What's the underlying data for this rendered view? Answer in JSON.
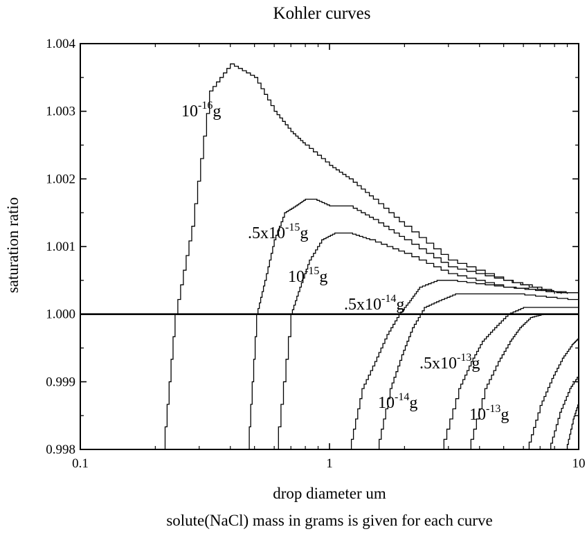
{
  "chart_data": {
    "type": "line",
    "title": "Kohler curves",
    "xlabel": "drop diameter um",
    "ylabel": "saturation ratio",
    "caption": "solute(NaCl) mass in grams is given for each curve",
    "x_scale": "log",
    "xlim": [
      0.1,
      10
    ],
    "ylim": [
      0.998,
      1.004
    ],
    "x_ticks": [
      {
        "value": 0.1,
        "label": "0.1"
      },
      {
        "value": 1,
        "label": "1"
      },
      {
        "value": 10,
        "label": "10"
      }
    ],
    "y_ticks": [
      {
        "value": 0.998,
        "label": "0.998"
      },
      {
        "value": 0.999,
        "label": "0.999"
      },
      {
        "value": 1.0,
        "label": "1.000"
      },
      {
        "value": 1.001,
        "label": "1.001"
      },
      {
        "value": 1.002,
        "label": "1.002"
      },
      {
        "value": 1.003,
        "label": "1.003"
      },
      {
        "value": 1.004,
        "label": "1.004"
      }
    ],
    "reference_line": {
      "y": 1.0
    },
    "grid": false,
    "series": [
      {
        "name": "10^-16 g",
        "label_base": "10",
        "label_exp": "-16",
        "label_unit": "g",
        "x": [
          0.215,
          0.24,
          0.28,
          0.33,
          0.4,
          0.5,
          0.6,
          0.7,
          0.8,
          1.0,
          1.2,
          1.5,
          2.0,
          3.0,
          5.0,
          8.5
        ],
        "y": [
          0.998,
          1.0,
          1.0013,
          1.0033,
          1.0037,
          1.0035,
          1.003,
          1.0027,
          1.0025,
          1.0022,
          1.002,
          1.0017,
          1.0013,
          1.0008,
          1.0005,
          1.0003
        ]
      },
      {
        "name": ".5x10^-15 g",
        "label_base": ".5x10",
        "label_exp": "-15",
        "label_unit": "g",
        "x": [
          0.47,
          0.51,
          0.55,
          0.6,
          0.66,
          0.73,
          0.8,
          0.87,
          1.0,
          1.2,
          1.5,
          2.0,
          3.0,
          5.0,
          8.0
        ],
        "y": [
          0.998,
          1.0,
          1.0005,
          1.0011,
          1.0015,
          1.0016,
          1.0017,
          1.0017,
          1.0016,
          1.0016,
          1.0014,
          1.0011,
          1.0007,
          1.0005,
          1.0003
        ]
      },
      {
        "name": "10^-15 g",
        "label_base": "10",
        "label_exp": "-15",
        "label_unit": "g",
        "x": [
          0.61,
          0.7,
          0.76,
          0.83,
          0.93,
          1.05,
          1.2,
          1.45,
          2.0,
          3.0,
          5.0,
          9.0
        ],
        "y": [
          0.998,
          1.0,
          1.0004,
          1.0008,
          1.0011,
          1.0012,
          1.0012,
          1.0011,
          1.0009,
          1.0006,
          1.0004,
          1.0003
        ]
      },
      {
        "name": ".5x10^-14 g",
        "label_base": ".5x10",
        "label_exp": "-14",
        "label_unit": "g",
        "x": [
          1.2,
          1.35,
          1.52,
          1.7,
          1.9,
          2.1,
          2.3,
          2.7,
          3.0,
          5.0,
          10.0
        ],
        "y": [
          0.998,
          0.9989,
          0.9993,
          0.9997,
          1.0,
          1.0002,
          1.0004,
          1.0005,
          1.0005,
          1.0004,
          1.0003
        ]
      },
      {
        "name": "10^-14 g",
        "label_base": "10",
        "label_exp": "-14",
        "label_unit": "g",
        "x": [
          1.55,
          1.75,
          1.95,
          2.15,
          2.4,
          2.75,
          3.2,
          4.0,
          5.5,
          10.0
        ],
        "y": [
          0.998,
          0.9989,
          0.9994,
          0.9998,
          1.0001,
          1.0002,
          1.0003,
          1.0003,
          1.0003,
          1.0002
        ]
      },
      {
        "name": ".5x10^-13 g",
        "label_base": ".5x10",
        "label_exp": "-13",
        "label_unit": "g",
        "x": [
          2.8,
          3.3,
          3.7,
          4.1,
          4.6,
          5.2,
          6.0,
          7.5,
          10.0
        ],
        "y": [
          0.998,
          0.9989,
          0.9993,
          0.9996,
          0.9998,
          1.0,
          1.0001,
          1.0001,
          1.0001
        ]
      },
      {
        "name": "10^-13 g",
        "label_base": "10",
        "label_exp": "-13",
        "label_unit": "g",
        "x": [
          3.6,
          4.2,
          4.75,
          5.3,
          5.8,
          6.4,
          7.2,
          8.5,
          10.0
        ],
        "y": [
          0.998,
          0.9989,
          0.9993,
          0.9996,
          0.9998,
          0.99995,
          1.0,
          1.0,
          1.0
        ]
      },
      {
        "name": "",
        "x": [
          6.2,
          7.0,
          7.8,
          8.6,
          9.4,
          10.0
        ],
        "y": [
          0.998,
          0.99865,
          0.99905,
          0.99935,
          0.99955,
          0.99965
        ]
      },
      {
        "name": "",
        "x": [
          7.6,
          8.4,
          9.2,
          10.0
        ],
        "y": [
          0.998,
          0.99855,
          0.9989,
          0.9991
        ]
      },
      {
        "name": "",
        "x": [
          8.9,
          9.5,
          10.0
        ],
        "y": [
          0.998,
          0.99845,
          0.9987
        ]
      }
    ]
  }
}
